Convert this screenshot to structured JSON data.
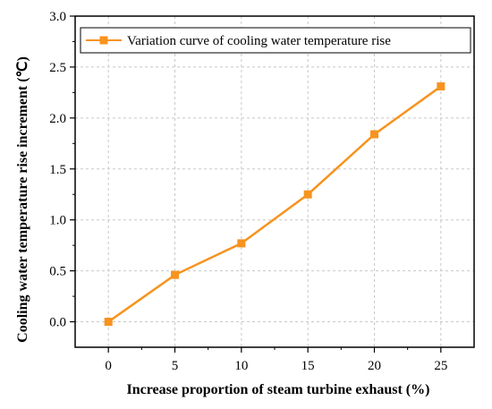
{
  "chart_data": {
    "type": "line",
    "x": [
      0,
      5,
      10,
      15,
      20,
      25
    ],
    "series": [
      {
        "name": "Variation curve of cooling water temperature rise",
        "values": [
          0.0,
          0.46,
          0.77,
          1.25,
          1.84,
          2.31
        ],
        "color": "#F7931E",
        "marker": "square"
      }
    ],
    "xlabel": "Increase proportion of steam turbine exhaust (%)",
    "ylabel": "Cooling water temperature rise increment  (℃)",
    "xlim": [
      -2.5,
      27.5
    ],
    "ylim": [
      -0.25,
      3.0
    ],
    "xticks": [
      "0",
      "5",
      "10",
      "15",
      "20",
      "25"
    ],
    "yticks": [
      "0.0",
      "0.5",
      "1.0",
      "1.5",
      "2.0",
      "2.5",
      "3.0"
    ],
    "grid": true,
    "legend_position": "top-right"
  }
}
